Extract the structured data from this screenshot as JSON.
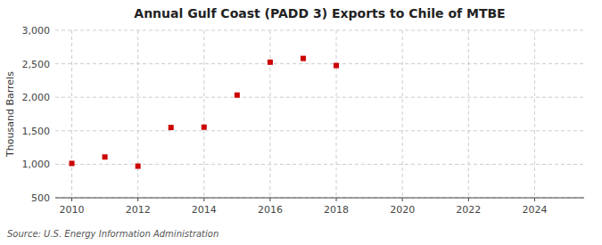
{
  "chart_data": {
    "type": "scatter",
    "title": "Annual Gulf Coast (PADD 3) Exports to Chile of MTBE",
    "y_label": "Thousand Barrels",
    "annotation": "Source: U.S. Energy Information Administration",
    "x": [
      2010,
      2011,
      2012,
      2013,
      2014,
      2015,
      2016,
      2017,
      2018
    ],
    "values": [
      1013,
      1109,
      972,
      1549,
      1554,
      2033,
      2524,
      2580,
      2474
    ],
    "color": "#cc0000",
    "marker": "square",
    "xlim": [
      2009.5,
      2025.5
    ],
    "xticks": [
      2010,
      2012,
      2014,
      2016,
      2018,
      2020,
      2022,
      2024
    ],
    "ylim": [
      500,
      3000
    ],
    "yticks": [
      500,
      {
        "value": 1000,
        "label": "1,000"
      },
      {
        "value": 1500,
        "label": "1,500"
      },
      {
        "value": 2000,
        "label": "2,000"
      },
      {
        "value": 2500,
        "label": "2,500"
      },
      {
        "value": 3000,
        "label": "3,000"
      }
    ],
    "grid": true
  }
}
